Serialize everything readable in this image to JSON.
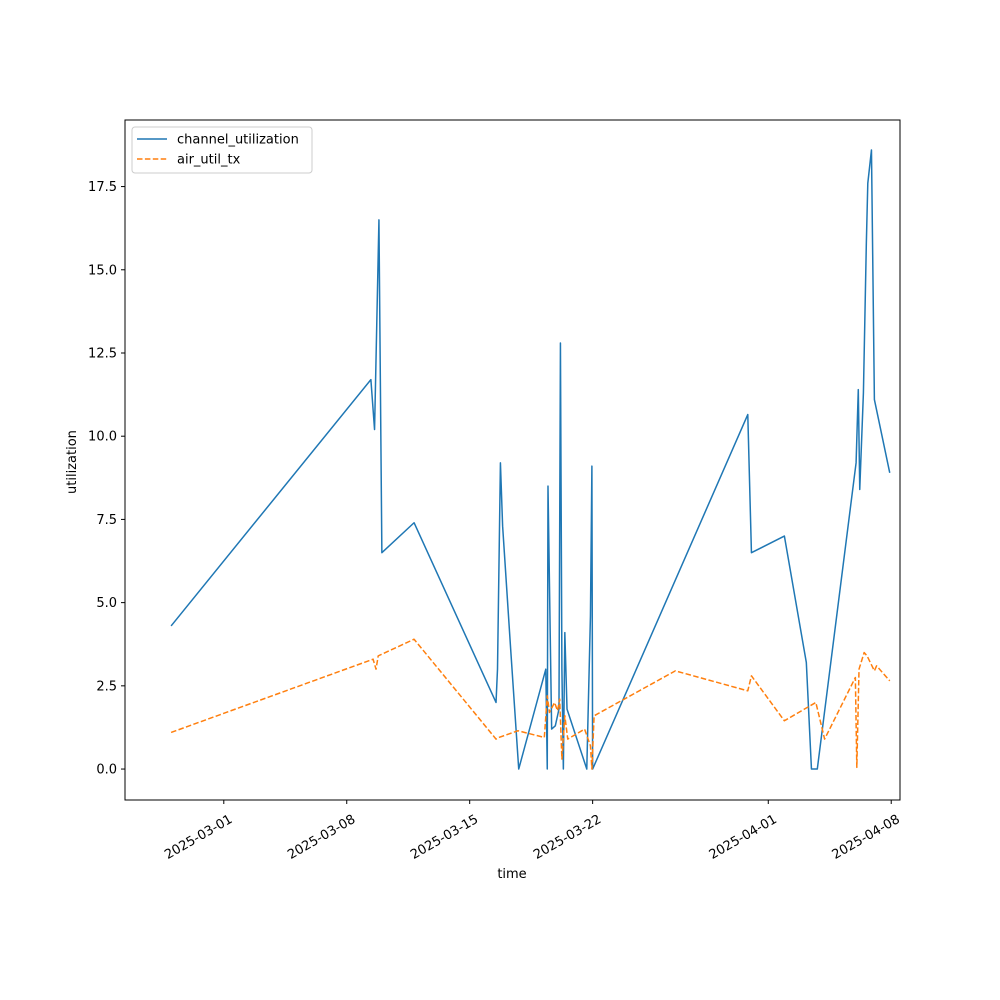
{
  "chart_data": {
    "type": "line",
    "title": "",
    "xlabel": "time",
    "ylabel": "utilization",
    "xlim": [
      "2025-02-23T09:00",
      "2025-04-08T12:00"
    ],
    "ylim": [
      -0.93,
      19.5
    ],
    "x_ticks": [
      "2025-03-01",
      "2025-03-08",
      "2025-03-15",
      "2025-03-22",
      "2025-04-01",
      "2025-04-08"
    ],
    "y_ticks": [
      "0.0",
      "2.5",
      "5.0",
      "7.5",
      "10.0",
      "12.5",
      "15.0",
      "17.5"
    ],
    "grid": false,
    "legend_position": "upper-left",
    "series": [
      {
        "name": "channel_utilization",
        "color": "#1f77b4",
        "dash": "solid",
        "points": [
          [
            "2025-02-26T00:00",
            4.3
          ],
          [
            "2025-03-09T09:00",
            11.7
          ],
          [
            "2025-03-09T14:00",
            10.2
          ],
          [
            "2025-03-09T20:00",
            16.5
          ],
          [
            "2025-03-10T00:00",
            6.5
          ],
          [
            "2025-03-11T20:00",
            7.4
          ],
          [
            "2025-03-16T12:00",
            2.0
          ],
          [
            "2025-03-16T14:00",
            3.0
          ],
          [
            "2025-03-16T18:00",
            9.2
          ],
          [
            "2025-03-16T21:00",
            7.3
          ],
          [
            "2025-03-17T08:00",
            3.6
          ],
          [
            "2025-03-17T19:00",
            0.0
          ],
          [
            "2025-03-19T08:00",
            3.0
          ],
          [
            "2025-03-19T10:00",
            0.0
          ],
          [
            "2025-03-19T11:00",
            8.5
          ],
          [
            "2025-03-19T16:00",
            1.2
          ],
          [
            "2025-03-19T21:00",
            1.3
          ],
          [
            "2025-03-20T02:00",
            1.8
          ],
          [
            "2025-03-20T04:00",
            12.8
          ],
          [
            "2025-03-20T06:00",
            3.0
          ],
          [
            "2025-03-20T08:00",
            0.0
          ],
          [
            "2025-03-20T10:00",
            4.1
          ],
          [
            "2025-03-20T13:00",
            1.8
          ],
          [
            "2025-03-21T16:00",
            0.0
          ],
          [
            "2025-03-21T21:00",
            4.6
          ],
          [
            "2025-03-21T23:00",
            9.1
          ],
          [
            "2025-03-22T00:00",
            0.0
          ],
          [
            "2025-03-30T20:00",
            10.65
          ],
          [
            "2025-03-31T01:00",
            6.5
          ],
          [
            "2025-04-01T22:00",
            7.0
          ],
          [
            "2025-04-03T04:00",
            3.2
          ],
          [
            "2025-04-03T11:00",
            0.0
          ],
          [
            "2025-04-03T19:00",
            0.0
          ],
          [
            "2025-04-06T00:00",
            9.2
          ],
          [
            "2025-04-06T03:00",
            11.4
          ],
          [
            "2025-04-06T05:00",
            8.4
          ],
          [
            "2025-04-06T10:00",
            11.3
          ],
          [
            "2025-04-06T14:00",
            15.8
          ],
          [
            "2025-04-06T16:00",
            17.6
          ],
          [
            "2025-04-06T21:00",
            18.6
          ],
          [
            "2025-04-07T01:00",
            11.1
          ],
          [
            "2025-04-07T22:00",
            8.9
          ]
        ]
      },
      {
        "name": "air_util_tx",
        "color": "#ff7f0e",
        "dash": "dashed",
        "points": [
          [
            "2025-02-26T00:00",
            1.1
          ],
          [
            "2025-03-09T12:00",
            3.3
          ],
          [
            "2025-03-09T16:00",
            3.0
          ],
          [
            "2025-03-09T19:00",
            3.4
          ],
          [
            "2025-03-11T20:00",
            3.9
          ],
          [
            "2025-03-16T12:00",
            0.9
          ],
          [
            "2025-03-16T16:00",
            0.95
          ],
          [
            "2025-03-17T18:00",
            1.15
          ],
          [
            "2025-03-19T06:00",
            0.95
          ],
          [
            "2025-03-19T10:00",
            2.2
          ],
          [
            "2025-03-19T13:00",
            1.7
          ],
          [
            "2025-03-19T20:00",
            2.0
          ],
          [
            "2025-03-20T00:00",
            1.75
          ],
          [
            "2025-03-20T03:00",
            2.1
          ],
          [
            "2025-03-20T06:00",
            0.3
          ],
          [
            "2025-03-20T10:00",
            1.6
          ],
          [
            "2025-03-20T14:00",
            0.9
          ],
          [
            "2025-03-21T13:00",
            1.2
          ],
          [
            "2025-03-21T21:00",
            0.7
          ],
          [
            "2025-03-21T23:00",
            0.0
          ],
          [
            "2025-03-22T02:00",
            1.6
          ],
          [
            "2025-03-26T17:00",
            2.95
          ],
          [
            "2025-03-30T20:00",
            2.35
          ],
          [
            "2025-03-31T01:00",
            2.8
          ],
          [
            "2025-04-01T22:00",
            1.45
          ],
          [
            "2025-04-03T17:00",
            2.0
          ],
          [
            "2025-04-04T05:00",
            0.9
          ],
          [
            "2025-04-05T23:00",
            2.75
          ],
          [
            "2025-04-06T01:00",
            0.05
          ],
          [
            "2025-04-06T04:00",
            3.0
          ],
          [
            "2025-04-06T11:00",
            3.5
          ],
          [
            "2025-04-06T15:00",
            3.4
          ],
          [
            "2025-04-07T01:00",
            2.95
          ],
          [
            "2025-04-07T04:00",
            3.1
          ],
          [
            "2025-04-07T22:00",
            2.65
          ]
        ]
      }
    ]
  }
}
